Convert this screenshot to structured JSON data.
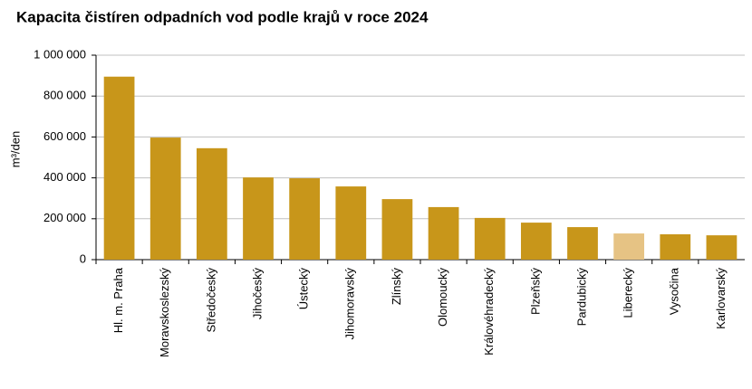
{
  "chart_data": {
    "type": "bar",
    "title": "Kapacita čistíren odpadních vod podle krajů v roce 2024",
    "y_label": "m³/den",
    "categories": [
      "Hl. m. Praha",
      "Moravskoslezský",
      "Středočeský",
      "Jihočeský",
      "Ústecký",
      "Jihomoravský",
      "Zlínský",
      "Olomoucký",
      "Královéhradecký",
      "Plzeňský",
      "Pardubický",
      "Liberecký",
      "Vysočina",
      "Karlovarský"
    ],
    "values": [
      895000,
      597000,
      545000,
      402000,
      398000,
      358000,
      296000,
      257000,
      204000,
      181000,
      159000,
      128000,
      124000,
      119000
    ],
    "colors": [
      "#c8961a",
      "#c8961a",
      "#c8961a",
      "#c8961a",
      "#c8961a",
      "#c8961a",
      "#c8961a",
      "#c8961a",
      "#c8961a",
      "#c8961a",
      "#c8961a",
      "#e6c384",
      "#c8961a",
      "#c8961a"
    ],
    "ylim": [
      0,
      1000000
    ],
    "yticks": [
      0,
      {
        "value": 200000,
        "label": "200 000"
      },
      {
        "value": 400000,
        "label": "400 000"
      },
      {
        "value": 600000,
        "label": "600 000"
      },
      {
        "value": 800000,
        "label": "800 000"
      },
      {
        "value": 1000000,
        "label": "1 000 000"
      }
    ],
    "grid": true
  }
}
